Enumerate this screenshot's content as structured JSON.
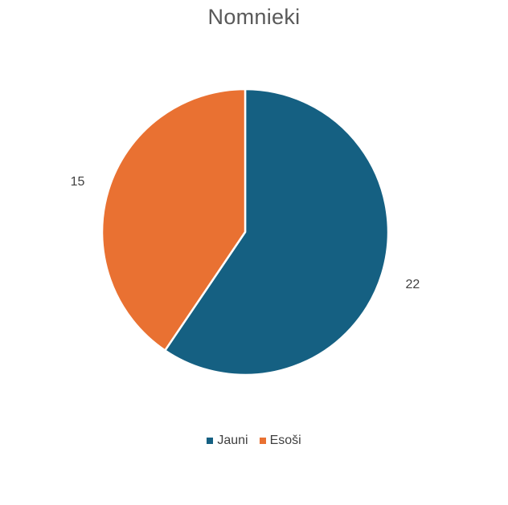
{
  "chart_data": {
    "type": "pie",
    "title": "Nomnieki",
    "categories": [
      "Jauni",
      "Esoši"
    ],
    "values": [
      22,
      15
    ],
    "colors": [
      "#156082",
      "#E97132"
    ],
    "data_labels": [
      "22",
      "15"
    ],
    "legend_position": "bottom"
  }
}
